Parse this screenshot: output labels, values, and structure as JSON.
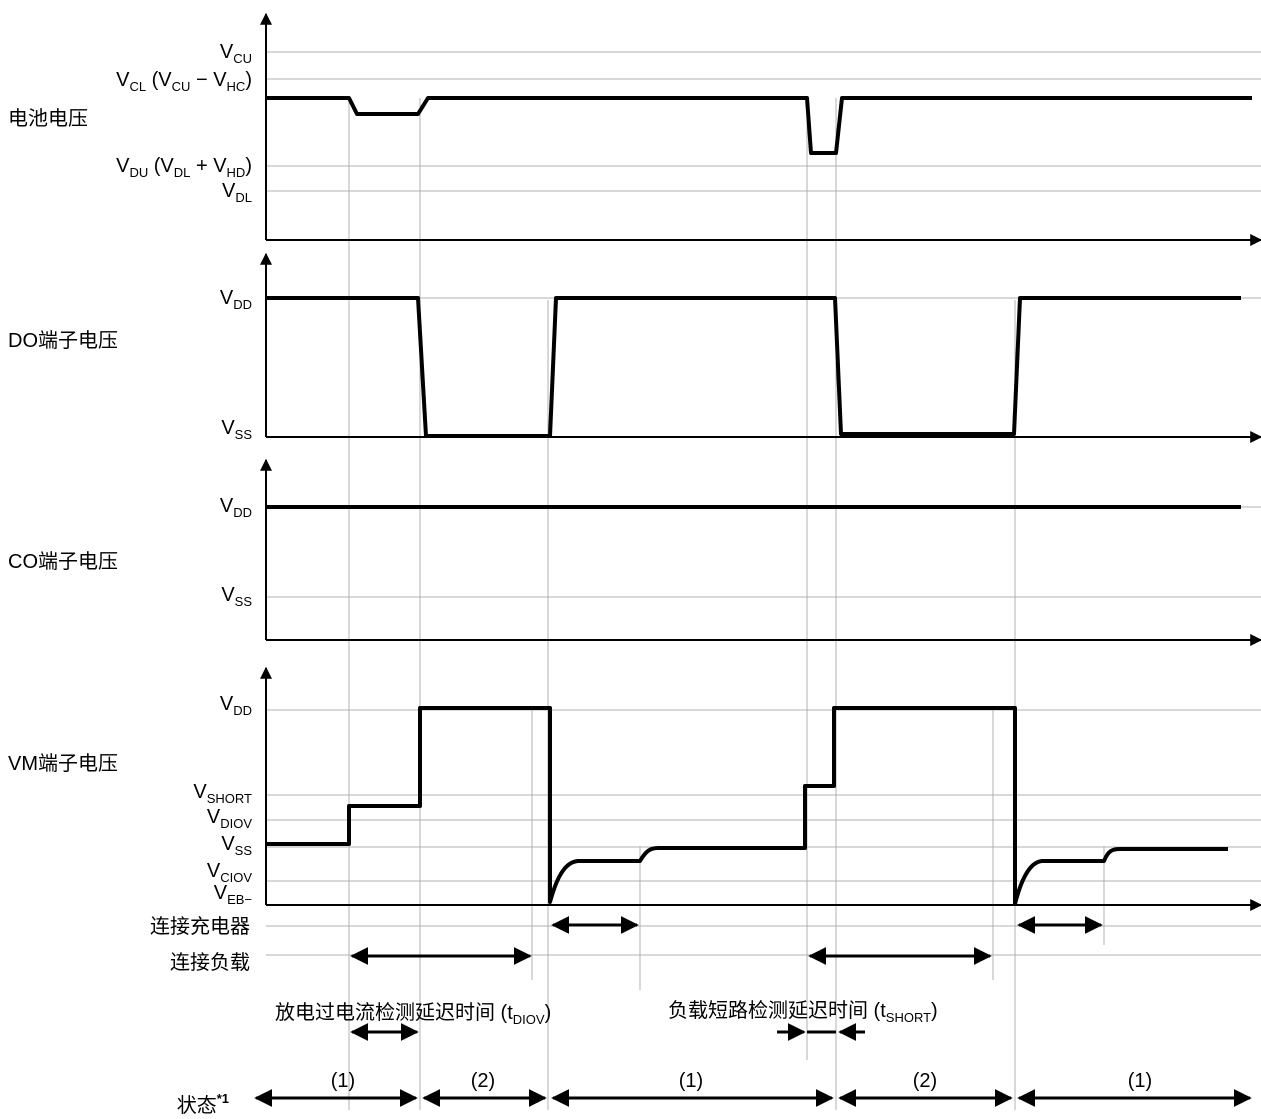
{
  "panels": {
    "battery": {
      "title": "电池电压",
      "levels": {
        "vcu": {
          "main": "V",
          "sub": "CU",
          "rest": ""
        },
        "vcl": {
          "main": "V",
          "sub": "CL",
          "rest": " (V",
          "sub2": "CU",
          "rest2": " − V",
          "sub3": "HC",
          "rest3": ")"
        },
        "vdu": {
          "main": "V",
          "sub": "DU",
          "rest": " (V",
          "sub2": "DL",
          "rest2": " + V",
          "sub3": "HD",
          "rest3": ")"
        },
        "vdl": {
          "main": "V",
          "sub": "DL",
          "rest": ""
        }
      }
    },
    "do": {
      "title": "DO端子电压",
      "vdd": {
        "main": "V",
        "sub": "DD"
      },
      "vss": {
        "main": "V",
        "sub": "SS"
      }
    },
    "co": {
      "title": "CO端子电压",
      "vdd": {
        "main": "V",
        "sub": "DD"
      },
      "vss": {
        "main": "V",
        "sub": "SS"
      }
    },
    "vm": {
      "title": "VM端子电压",
      "vdd": {
        "main": "V",
        "sub": "DD"
      },
      "vshort": {
        "main": "V",
        "sub": "SHORT"
      },
      "vdiov": {
        "main": "V",
        "sub": "DIOV"
      },
      "vss": {
        "main": "V",
        "sub": "SS"
      },
      "vciov": {
        "main": "V",
        "sub": "CIOV"
      },
      "veb": {
        "main": "V",
        "sub": "EB−"
      }
    }
  },
  "rows": {
    "charger": "连接充电器",
    "load": "连接负载"
  },
  "delays": {
    "tdiov": {
      "text": "放电过电流检测延迟时间 (t",
      "sub": "DIOV",
      "end": ")"
    },
    "tshort": {
      "text": "负载短路检测延迟时间 (t",
      "sub": "SHORT",
      "end": ")"
    }
  },
  "state": {
    "label": "状态",
    "note": "*1",
    "items": [
      "(1)",
      "(2)",
      "(1)",
      "(2)",
      "(1)"
    ]
  }
}
